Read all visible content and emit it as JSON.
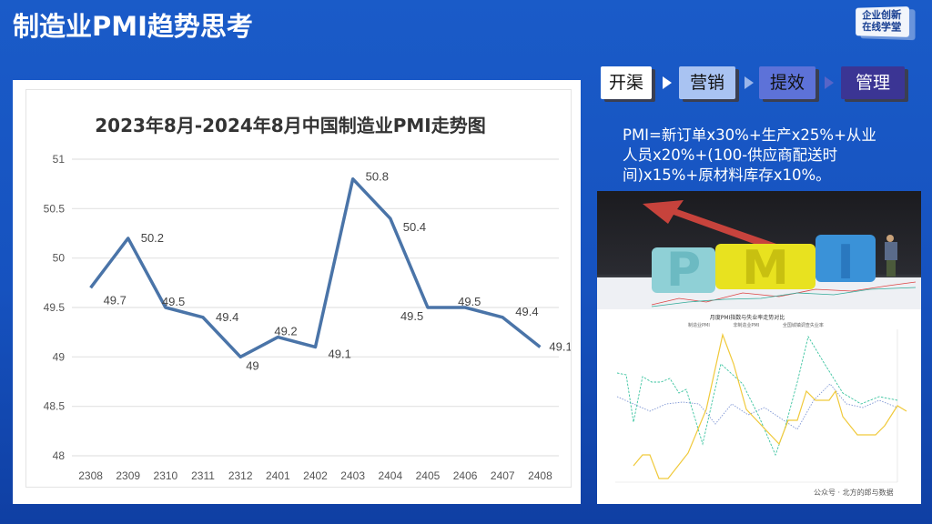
{
  "page": {
    "title": "制造业PMI趋势思考",
    "logo": {
      "line1": "企业创新",
      "line2": "在线学堂"
    }
  },
  "flow": {
    "steps": [
      {
        "label": "开渠",
        "bg": "#ffffff",
        "color": "#111111"
      },
      {
        "label": "营销",
        "bg": "#a9c3f2",
        "color": "#111111"
      },
      {
        "label": "提效",
        "bg": "#5d72d8",
        "color": "#111111"
      },
      {
        "label": "管理",
        "bg": "#3b3594",
        "color": "#ffffff"
      }
    ],
    "arrow_colors": [
      "#ffffff",
      "#9bb6ea",
      "#5765c8"
    ]
  },
  "formula": {
    "text": "PMI=新订单x30%+生产x25%+从业人员x20%+(100-供应商配送时间)x15%+原材料库存x10%。"
  },
  "photo": {
    "letters": [
      "P",
      "M",
      "I"
    ]
  },
  "mini_chart": {
    "title": "月度PMI指数与失业率走势对比",
    "legend": [
      "制造业PMI",
      "非制造业PMI",
      "全国城镇调查失业率"
    ],
    "watermark": "公众号 · 北方的郎与数据"
  },
  "chart_data": {
    "type": "line",
    "title": "2023年8月-2024年8月中国制造业PMI走势图",
    "xlabel": "",
    "ylabel": "",
    "categories": [
      "2308",
      "2309",
      "2310",
      "2311",
      "2312",
      "2401",
      "2402",
      "2403",
      "2404",
      "2405",
      "2406",
      "2407",
      "2408"
    ],
    "series": [
      {
        "name": "制造业PMI",
        "values": [
          49.7,
          50.2,
          49.5,
          49.4,
          49.0,
          49.2,
          49.1,
          50.8,
          50.4,
          49.5,
          49.5,
          49.4,
          49.1
        ],
        "color": "#4a74a8"
      }
    ],
    "data_labels": [
      "49.7",
      "50.2",
      "49.5",
      "49.4",
      "49",
      "49.2",
      "49.1",
      "50.8",
      "50.4",
      "49.5",
      "49.5",
      "49.4",
      "49.1"
    ],
    "y_ticks": [
      "51",
      "50.5",
      "50",
      "49.5",
      "49",
      "48.5",
      "48"
    ],
    "ylim": [
      48,
      51
    ],
    "grid": true,
    "legend": "none"
  }
}
